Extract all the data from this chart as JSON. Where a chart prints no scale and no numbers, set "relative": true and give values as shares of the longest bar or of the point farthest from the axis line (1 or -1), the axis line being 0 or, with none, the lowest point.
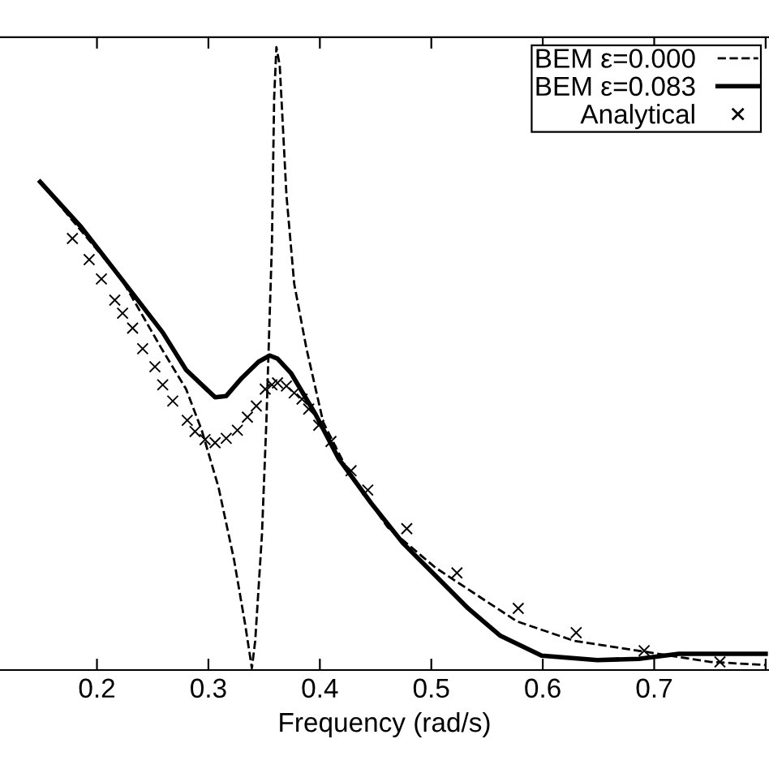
{
  "chart_data": {
    "type": "line",
    "xlabel": "Frequency (rad/s)",
    "relative": true,
    "tick_labels": "x",
    "grid": false,
    "legend": "top right",
    "xlim": [
      0.113,
      0.803
    ],
    "xticks": [
      0.2,
      0.3,
      0.4,
      0.5,
      0.6,
      0.7,
      {
        "value": 0.8,
        "label": null
      }
    ],
    "series": [
      {
        "name": "BEM ε=0.000",
        "color": "#000000",
        "line_style": "dashed",
        "marker": "none",
        "x": [
          0.149,
          0.222,
          0.258,
          0.28,
          0.294,
          0.309,
          0.323,
          0.333,
          0.339,
          0.342,
          0.348,
          0.352,
          0.357,
          0.359,
          0.361,
          0.364,
          0.37,
          0.377,
          0.388,
          0.403,
          0.425,
          0.461,
          0.504,
          0.548,
          0.577,
          0.628,
          0.693,
          0.751,
          0.8
        ],
        "values": [
          0.784,
          0.628,
          0.516,
          0.451,
          0.385,
          0.294,
          0.177,
          0.073,
          0.003,
          0.047,
          0.216,
          0.398,
          0.685,
          0.919,
          1.0,
          0.971,
          0.763,
          0.62,
          0.516,
          0.398,
          0.32,
          0.229,
          0.164,
          0.112,
          0.078,
          0.047,
          0.029,
          0.013,
          0.008
        ]
      },
      {
        "name": "BEM ε=0.083",
        "color": "#000000",
        "line_style": "solid",
        "marker": "none",
        "x": [
          0.149,
          0.186,
          0.222,
          0.259,
          0.28,
          0.306,
          0.316,
          0.33,
          0.345,
          0.355,
          0.362,
          0.374,
          0.396,
          0.417,
          0.446,
          0.475,
          0.504,
          0.533,
          0.562,
          0.599,
          0.649,
          0.686,
          0.722,
          0.765,
          0.8
        ],
        "values": [
          0.784,
          0.711,
          0.628,
          0.542,
          0.482,
          0.438,
          0.44,
          0.469,
          0.495,
          0.505,
          0.5,
          0.477,
          0.411,
          0.339,
          0.268,
          0.203,
          0.151,
          0.099,
          0.055,
          0.023,
          0.016,
          0.018,
          0.026,
          0.026,
          0.026
        ]
      },
      {
        "name": "Analytical",
        "color": "#000000",
        "type": "scatter",
        "marker": "cross",
        "x": [
          0.178,
          0.193,
          0.204,
          0.216,
          0.223,
          0.232,
          0.241,
          0.252,
          0.259,
          0.268,
          0.281,
          0.288,
          0.297,
          0.306,
          0.316,
          0.326,
          0.335,
          0.343,
          0.351,
          0.357,
          0.362,
          0.37,
          0.377,
          0.384,
          0.39,
          0.399,
          0.41,
          0.428,
          0.443,
          0.478,
          0.523,
          0.578,
          0.63,
          0.691,
          0.759
        ],
        "values": [
          0.693,
          0.659,
          0.628,
          0.594,
          0.573,
          0.549,
          0.516,
          0.487,
          0.458,
          0.432,
          0.401,
          0.383,
          0.37,
          0.365,
          0.372,
          0.385,
          0.406,
          0.424,
          0.451,
          0.458,
          0.461,
          0.456,
          0.445,
          0.435,
          0.419,
          0.393,
          0.367,
          0.32,
          0.289,
          0.227,
          0.156,
          0.099,
          0.06,
          0.031,
          0.013
        ]
      }
    ]
  }
}
